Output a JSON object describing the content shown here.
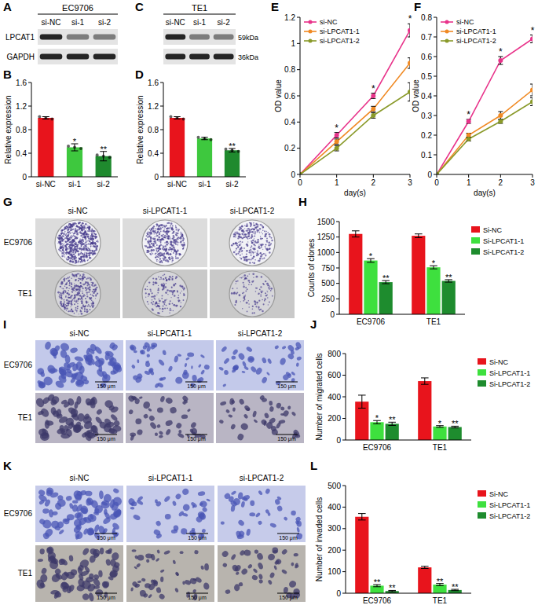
{
  "chart_data": [
    {
      "panel": "B",
      "type": "bar",
      "y_label": "Relative expression",
      "categories": [
        "si-NC",
        "si-1",
        "si-2"
      ],
      "values": [
        1.0,
        0.5,
        0.35
      ],
      "errors": [
        0.02,
        0.06,
        0.08
      ],
      "significance": [
        null,
        "*",
        "**"
      ],
      "colors": [
        "#e8141c",
        "#3ec83e",
        "#1f8a2e"
      ],
      "ylim": [
        0,
        1.6
      ],
      "yticks": [
        0,
        0.4,
        0.8,
        1.2,
        1.6
      ]
    },
    {
      "panel": "D",
      "type": "bar",
      "y_label": "Relative expression",
      "categories": [
        "si-NC",
        "si-1",
        "si-2"
      ],
      "values": [
        1.0,
        0.65,
        0.45
      ],
      "errors": [
        0.02,
        0.02,
        0.03
      ],
      "significance": [
        null,
        null,
        "**"
      ],
      "colors": [
        "#e8141c",
        "#3ec83e",
        "#1f8a2e"
      ],
      "ylim": [
        0,
        1.6
      ],
      "yticks": [
        0,
        0.4,
        0.8,
        1.2,
        1.6
      ]
    },
    {
      "panel": "E",
      "type": "line",
      "x_label": "day(s)",
      "y_label": "OD value",
      "x": [
        0,
        1,
        2,
        3
      ],
      "xlim": [
        0,
        3
      ],
      "xticks": [
        0,
        1,
        2,
        3
      ],
      "ylim": [
        0,
        1.2
      ],
      "yticks": [
        0,
        0.2,
        0.4,
        0.6,
        0.8,
        1,
        1.2
      ],
      "legend": "top-left",
      "marker": "circle",
      "significance": [
        null,
        "*",
        "*",
        "*"
      ],
      "series": [
        {
          "name": "si-NC",
          "color": "#e8338a",
          "values": [
            0,
            0.3,
            0.6,
            1.1
          ],
          "errors": [
            0,
            0.02,
            0.02,
            0.05
          ]
        },
        {
          "name": "si-LPCAT1-1",
          "color": "#f08a24",
          "values": [
            0,
            0.25,
            0.5,
            0.85
          ],
          "errors": [
            0,
            0.02,
            0.02,
            0.04
          ]
        },
        {
          "name": "si-LPCAT1-2",
          "color": "#8a9a2a",
          "values": [
            0,
            0.2,
            0.45,
            0.63
          ],
          "errors": [
            0,
            0.02,
            0.02,
            0.07
          ]
        }
      ]
    },
    {
      "panel": "F",
      "type": "line",
      "x_label": "day(s)",
      "y_label": "OD value",
      "x": [
        0,
        1,
        2,
        3
      ],
      "xlim": [
        0,
        3
      ],
      "xticks": [
        0,
        1,
        2,
        3
      ],
      "ylim": [
        0,
        0.8
      ],
      "yticks": [
        0,
        0.1,
        0.2,
        0.3,
        0.4,
        0.5,
        0.6,
        0.7,
        0.8
      ],
      "legend": "top-left",
      "marker": "circle",
      "significance": [
        null,
        "*",
        "*",
        "*"
      ],
      "series": [
        {
          "name": "si-NC",
          "color": "#e8338a",
          "values": [
            0,
            0.27,
            0.58,
            0.69
          ],
          "errors": [
            0,
            0.01,
            0.02,
            0.02
          ]
        },
        {
          "name": "si-LPCAT1-1",
          "color": "#f08a24",
          "values": [
            0,
            0.2,
            0.3,
            0.43
          ],
          "errors": [
            0,
            0.01,
            0.02,
            0.03
          ]
        },
        {
          "name": "si-LPCAT1-2",
          "color": "#8a9a2a",
          "values": [
            0,
            0.18,
            0.27,
            0.37
          ],
          "errors": [
            0,
            0.01,
            0.01,
            0.02
          ]
        }
      ]
    },
    {
      "panel": "H",
      "type": "bar",
      "y_label": "Counts of clones",
      "legend": "right",
      "categories": [
        "EC9706",
        "TE1"
      ],
      "ylim": [
        0,
        1500
      ],
      "yticks": [
        0,
        250,
        500,
        750,
        1000,
        1250,
        1500
      ],
      "series": [
        {
          "name": "Si-NC",
          "color": "#e8141c",
          "values": [
            1300,
            1270
          ],
          "errors": [
            50,
            30
          ],
          "significance": [
            null,
            null
          ]
        },
        {
          "name": "Si-LPCAT1-1",
          "color": "#3ee03e",
          "values": [
            870,
            760
          ],
          "errors": [
            30,
            25
          ],
          "significance": [
            "*",
            "*"
          ]
        },
        {
          "name": "Si-LPCAT1-2",
          "color": "#1e8c2e",
          "values": [
            520,
            540
          ],
          "errors": [
            25,
            20
          ],
          "significance": [
            "**",
            "**"
          ]
        }
      ]
    },
    {
      "panel": "J",
      "type": "bar",
      "y_label": "Number of migrated cells",
      "legend": "right",
      "categories": [
        "EC9706",
        "TE1"
      ],
      "ylim": [
        0,
        800
      ],
      "yticks": [
        0,
        200,
        400,
        600,
        800
      ],
      "series": [
        {
          "name": "Si-NC",
          "color": "#e8141c",
          "values": [
            355,
            545
          ],
          "errors": [
            60,
            30
          ],
          "significance": [
            null,
            null
          ]
        },
        {
          "name": "Si-LPCAT1-1",
          "color": "#3ee03e",
          "values": [
            165,
            125
          ],
          "errors": [
            15,
            8
          ],
          "significance": [
            "*",
            "*"
          ]
        },
        {
          "name": "Si-LPCAT1-2",
          "color": "#1e8c2e",
          "values": [
            150,
            120
          ],
          "errors": [
            15,
            8
          ],
          "significance": [
            "**",
            "**"
          ]
        }
      ]
    },
    {
      "panel": "L",
      "type": "bar",
      "y_label": "Number of invaded cells",
      "legend": "right",
      "categories": [
        "EC9706",
        "TE1"
      ],
      "ylim": [
        0,
        500
      ],
      "yticks": [
        0,
        100,
        200,
        300,
        400,
        500
      ],
      "series": [
        {
          "name": "Si-NC",
          "color": "#e8141c",
          "values": [
            355,
            120
          ],
          "errors": [
            15,
            5
          ],
          "significance": [
            null,
            null
          ]
        },
        {
          "name": "Si-LPCAT1-1",
          "color": "#3ee03e",
          "values": [
            35,
            40
          ],
          "errors": [
            5,
            5
          ],
          "significance": [
            "**",
            "**"
          ]
        },
        {
          "name": "Si-LPCAT1-2",
          "color": "#1e8c2e",
          "values": [
            10,
            15
          ],
          "errors": [
            3,
            3
          ],
          "significance": [
            "**",
            "**"
          ]
        }
      ]
    }
  ],
  "figure": {
    "blots": [
      {
        "panel": "A",
        "title": "EC9706",
        "lanes": [
          "si-NC",
          "si-1",
          "si-2"
        ],
        "proteins": [
          "LPCAT1",
          "GAPDH"
        ]
      },
      {
        "panel": "C",
        "title": "TE1",
        "lanes": [
          "si-NC",
          "si-1",
          "si-2"
        ],
        "sizes": [
          "59kDa",
          "36kDa"
        ]
      }
    ],
    "images": [
      {
        "panel": "G",
        "columns": [
          "si-NC",
          "si-LPCAT1-1",
          "si-LPCAT1-2"
        ],
        "rows": [
          "EC9706",
          "TE1"
        ]
      },
      {
        "panel": "I",
        "columns": [
          "si-NC",
          "si-LPCAT1-1",
          "si-LPCAT1-2"
        ],
        "rows": [
          "EC9706",
          "TE1"
        ],
        "scale_bar": "150 μm"
      },
      {
        "panel": "K",
        "columns": [
          "si-NC",
          "si-LPCAT1-1",
          "si-LPCAT1-2"
        ],
        "rows": [
          "EC9706",
          "TE1"
        ],
        "scale_bar": "150 μm"
      }
    ]
  }
}
